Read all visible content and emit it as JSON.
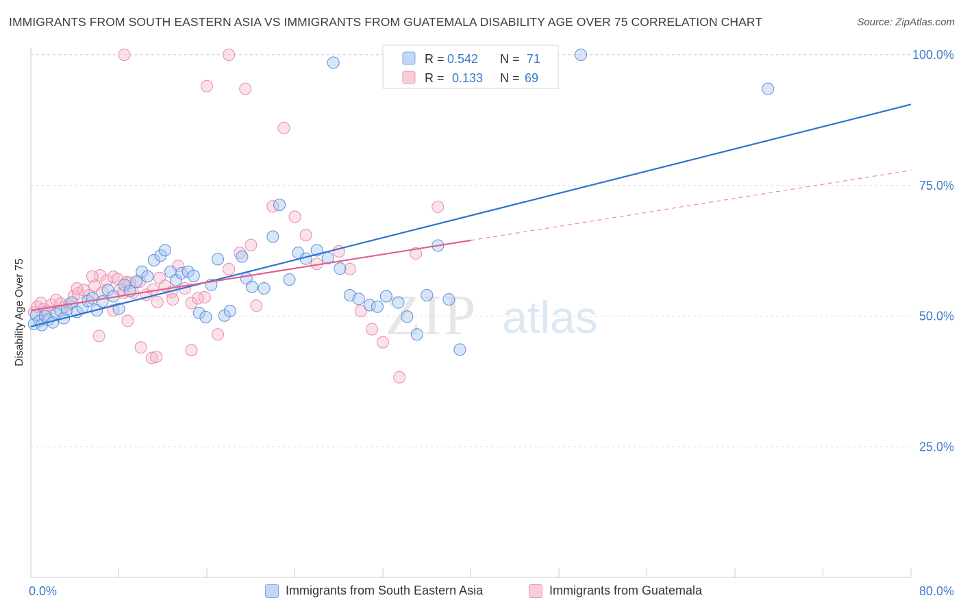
{
  "header": {
    "title": "IMMIGRANTS FROM SOUTH EASTERN ASIA VS IMMIGRANTS FROM GUATEMALA DISABILITY AGE OVER 75 CORRELATION CHART",
    "source": "Source: ZipAtlas.com"
  },
  "watermark": {
    "zip": "ZIP",
    "atlas": "atlas"
  },
  "legend": {
    "rows": [
      {
        "r_label": "R =",
        "r_value": "0.542",
        "n_label": "N =",
        "n_value": "71"
      },
      {
        "r_label": "R =",
        "r_value": "0.133",
        "n_label": "N =",
        "n_value": "69"
      }
    ]
  },
  "bottom_legend": [
    {
      "label": "Immigrants from South Eastern Asia"
    },
    {
      "label": "Immigrants from Guatemala"
    }
  ],
  "colors": {
    "blue": "#3b7dd8",
    "blue_fill": "#a9c7f0",
    "pink": "#e8628e",
    "pink_fill": "#f5b6cb",
    "axis_label": "#3b78c9",
    "grid": "#d9d9d9"
  },
  "chart_data": {
    "type": "scatter",
    "title": "IMMIGRANTS FROM SOUTH EASTERN ASIA VS IMMIGRANTS FROM GUATEMALA DISABILITY AGE OVER 75 CORRELATION CHART",
    "xlabel": "",
    "ylabel": "Disability Age Over 75",
    "xlim": [
      0,
      80
    ],
    "ylim": [
      0,
      100
    ],
    "x_tick_labels": [
      "0.0%",
      "80.0%"
    ],
    "y_ticks": [
      25,
      50,
      75,
      100
    ],
    "y_tick_labels": [
      "25.0%",
      "50.0%",
      "75.0%",
      "100.0%"
    ],
    "grid": true,
    "legend_position": "top-center",
    "series": [
      {
        "name": "Immigrants from South Eastern Asia",
        "color": "#3b7dd8",
        "r": 0.542,
        "n": 71,
        "trend": {
          "x": [
            0,
            80
          ],
          "y": [
            48.0,
            90.5
          ],
          "style": "solid"
        },
        "points": [
          [
            0.3,
            48.5
          ],
          [
            0.5,
            50.2
          ],
          [
            0.8,
            49.1
          ],
          [
            1.0,
            48.3
          ],
          [
            1.3,
            50.0
          ],
          [
            1.6,
            49.3
          ],
          [
            2.0,
            48.8
          ],
          [
            2.3,
            50.5
          ],
          [
            2.7,
            51.0
          ],
          [
            3.0,
            49.6
          ],
          [
            3.3,
            51.3
          ],
          [
            3.7,
            52.6
          ],
          [
            4.2,
            50.8
          ],
          [
            4.7,
            51.6
          ],
          [
            5.2,
            52.9
          ],
          [
            5.6,
            53.4
          ],
          [
            6.0,
            51.1
          ],
          [
            6.5,
            52.8
          ],
          [
            7.0,
            55.0
          ],
          [
            7.5,
            53.8
          ],
          [
            8.0,
            51.4
          ],
          [
            8.5,
            56.0
          ],
          [
            9.0,
            54.8
          ],
          [
            9.6,
            56.6
          ],
          [
            10.1,
            58.5
          ],
          [
            10.6,
            57.6
          ],
          [
            11.2,
            60.7
          ],
          [
            11.8,
            61.6
          ],
          [
            12.2,
            62.6
          ],
          [
            12.7,
            58.5
          ],
          [
            13.2,
            56.9
          ],
          [
            13.7,
            58.2
          ],
          [
            14.3,
            58.5
          ],
          [
            14.8,
            57.7
          ],
          [
            15.3,
            50.6
          ],
          [
            15.9,
            49.8
          ],
          [
            16.4,
            56.0
          ],
          [
            17.0,
            60.9
          ],
          [
            17.6,
            50.1
          ],
          [
            18.1,
            51.0
          ],
          [
            19.2,
            61.4
          ],
          [
            19.6,
            57.2
          ],
          [
            20.1,
            55.6
          ],
          [
            21.2,
            55.3
          ],
          [
            22.0,
            65.2
          ],
          [
            22.6,
            71.3
          ],
          [
            23.5,
            57.0
          ],
          [
            24.3,
            62.1
          ],
          [
            25.0,
            61.0
          ],
          [
            26.0,
            62.6
          ],
          [
            27.0,
            61.1
          ],
          [
            28.1,
            59.1
          ],
          [
            29.0,
            54.0
          ],
          [
            29.8,
            53.3
          ],
          [
            30.8,
            52.1
          ],
          [
            31.5,
            51.8
          ],
          [
            32.3,
            53.8
          ],
          [
            33.4,
            52.6
          ],
          [
            34.2,
            49.9
          ],
          [
            35.1,
            46.5
          ],
          [
            36.0,
            54.0
          ],
          [
            37.0,
            63.5
          ],
          [
            38.0,
            53.2
          ],
          [
            39.0,
            43.6
          ],
          [
            40.0,
            96.7
          ],
          [
            33.0,
            100
          ],
          [
            43.0,
            100
          ],
          [
            50.0,
            100
          ],
          [
            67.0,
            93.5
          ],
          [
            36.8,
            100
          ],
          [
            27.5,
            98.5
          ]
        ]
      },
      {
        "name": "Immigrants from Guatemala",
        "color": "#e8628e",
        "r": 0.133,
        "n": 69,
        "trend": {
          "x": [
            0,
            40
          ],
          "y": [
            51.1,
            64.5
          ],
          "style": "solid"
        },
        "trend_extension": {
          "x": [
            40,
            80
          ],
          "y": [
            64.5,
            77.9
          ],
          "style": "dashed"
        },
        "points": [
          [
            0.3,
            50.7
          ],
          [
            0.6,
            51.8
          ],
          [
            0.9,
            52.5
          ],
          [
            1.2,
            51.4
          ],
          [
            1.5,
            51.0
          ],
          [
            1.9,
            52.2
          ],
          [
            2.3,
            53.1
          ],
          [
            2.7,
            52.4
          ],
          [
            3.1,
            51.8
          ],
          [
            3.5,
            52.3
          ],
          [
            3.9,
            53.8
          ],
          [
            4.3,
            54.4
          ],
          [
            4.8,
            55.0
          ],
          [
            5.3,
            54.0
          ],
          [
            5.8,
            55.8
          ],
          [
            6.3,
            57.8
          ],
          [
            6.9,
            56.8
          ],
          [
            7.5,
            57.5
          ],
          [
            8.1,
            55.0
          ],
          [
            8.7,
            56.5
          ],
          [
            9.3,
            54.5
          ],
          [
            9.9,
            56.6
          ],
          [
            10.5,
            54.1
          ],
          [
            11.1,
            55.1
          ],
          [
            11.7,
            57.3
          ],
          [
            12.2,
            55.8
          ],
          [
            12.8,
            54.6
          ],
          [
            13.4,
            59.6
          ],
          [
            14.0,
            55.3
          ],
          [
            14.6,
            52.5
          ],
          [
            15.2,
            53.4
          ],
          [
            15.8,
            53.6
          ],
          [
            4.2,
            55.3
          ],
          [
            5.6,
            57.6
          ],
          [
            6.5,
            54.5
          ],
          [
            7.9,
            57.1
          ],
          [
            8.4,
            54.4
          ],
          [
            9.0,
            56.4
          ],
          [
            11.5,
            52.7
          ],
          [
            12.9,
            53.2
          ],
          [
            6.2,
            46.2
          ],
          [
            7.5,
            51.1
          ],
          [
            8.8,
            49.1
          ],
          [
            10.0,
            44.0
          ],
          [
            11.0,
            42.0
          ],
          [
            11.4,
            42.2
          ],
          [
            14.6,
            43.5
          ],
          [
            17.0,
            46.5
          ],
          [
            18.0,
            59.0
          ],
          [
            19.0,
            62.1
          ],
          [
            20.0,
            63.6
          ],
          [
            20.5,
            52.0
          ],
          [
            22.0,
            71.0
          ],
          [
            23.0,
            86.0
          ],
          [
            24.0,
            69.0
          ],
          [
            25.0,
            65.5
          ],
          [
            26.0,
            60.0
          ],
          [
            28.0,
            62.4
          ],
          [
            29.0,
            59.0
          ],
          [
            30.0,
            51.0
          ],
          [
            31.0,
            47.5
          ],
          [
            32.0,
            45.0
          ],
          [
            33.5,
            38.3
          ],
          [
            35.0,
            62.0
          ],
          [
            37.0,
            70.9
          ],
          [
            8.5,
            100
          ],
          [
            16.0,
            94.0
          ],
          [
            18.0,
            100
          ],
          [
            19.5,
            93.5
          ]
        ]
      }
    ]
  }
}
